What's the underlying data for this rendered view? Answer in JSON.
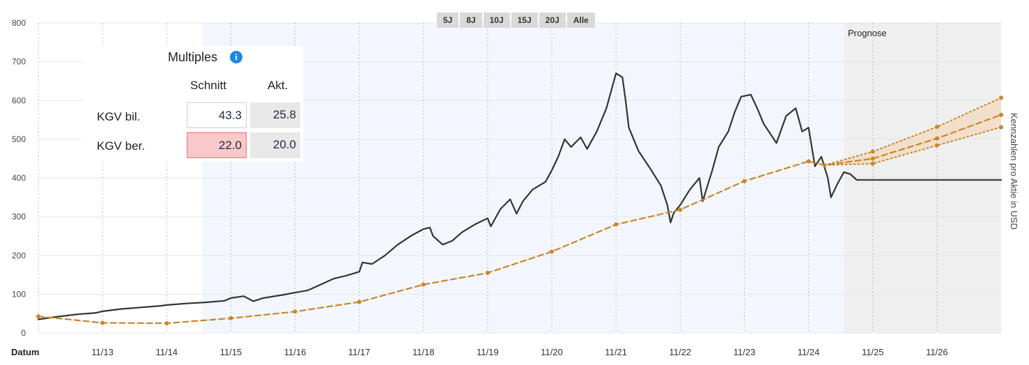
{
  "range_buttons": [
    "5J",
    "8J",
    "10J",
    "15J",
    "20J",
    "Alle"
  ],
  "forecast_label": "Prognose",
  "right_axis_label": "Kennzahlen pro Aktie in USD",
  "x_axis_title": "Datum",
  "multiples": {
    "title": "Multiples",
    "col_avg": "Schnitt",
    "col_cur": "Akt.",
    "rows": [
      {
        "label": "KGV bil.",
        "avg": "43.3",
        "cur": "25.8"
      },
      {
        "label": "KGV ber.",
        "avg": "22.0",
        "cur": "20.0"
      }
    ]
  },
  "colors": {
    "price": "#333333",
    "eps": "#c8862a",
    "forecast_bg": "#efefef",
    "highlight_bg": "#f3f7fd",
    "info": "#1e88e5"
  },
  "chart_data": {
    "type": "line",
    "x_ticks": [
      "11/13",
      "11/14",
      "11/15",
      "11/16",
      "11/17",
      "11/18",
      "11/19",
      "11/20",
      "11/21",
      "11/22",
      "11/23",
      "11/24",
      "11/25",
      "11/26"
    ],
    "y_ticks": [
      0,
      100,
      200,
      300,
      400,
      500,
      600,
      700,
      800
    ],
    "ylim": [
      0,
      800
    ],
    "xlim": [
      2012.0,
      2027.0
    ],
    "highlight_range": [
      2014.55,
      2024.55
    ],
    "forecast_start": 2024.55,
    "series": [
      {
        "key": "price",
        "style": "solid",
        "points": [
          [
            2012.0,
            35
          ],
          [
            2012.3,
            42
          ],
          [
            2012.6,
            48
          ],
          [
            2012.9,
            52
          ],
          [
            2013.0,
            56
          ],
          [
            2013.3,
            62
          ],
          [
            2013.6,
            66
          ],
          [
            2013.9,
            70
          ],
          [
            2014.0,
            72
          ],
          [
            2014.3,
            76
          ],
          [
            2014.6,
            79
          ],
          [
            2014.9,
            83
          ],
          [
            2015.0,
            90
          ],
          [
            2015.2,
            95
          ],
          [
            2015.35,
            82
          ],
          [
            2015.5,
            90
          ],
          [
            2015.8,
            98
          ],
          [
            2016.0,
            104
          ],
          [
            2016.2,
            110
          ],
          [
            2016.4,
            125
          ],
          [
            2016.6,
            140
          ],
          [
            2016.8,
            148
          ],
          [
            2017.0,
            158
          ],
          [
            2017.05,
            182
          ],
          [
            2017.2,
            178
          ],
          [
            2017.4,
            200
          ],
          [
            2017.6,
            228
          ],
          [
            2017.8,
            250
          ],
          [
            2018.0,
            268
          ],
          [
            2018.1,
            272
          ],
          [
            2018.15,
            250
          ],
          [
            2018.3,
            228
          ],
          [
            2018.45,
            238
          ],
          [
            2018.6,
            260
          ],
          [
            2018.8,
            280
          ],
          [
            2019.0,
            296
          ],
          [
            2019.05,
            275
          ],
          [
            2019.2,
            320
          ],
          [
            2019.35,
            345
          ],
          [
            2019.45,
            308
          ],
          [
            2019.55,
            340
          ],
          [
            2019.7,
            370
          ],
          [
            2019.9,
            390
          ],
          [
            2020.0,
            420
          ],
          [
            2020.1,
            455
          ],
          [
            2020.2,
            500
          ],
          [
            2020.3,
            480
          ],
          [
            2020.45,
            505
          ],
          [
            2020.55,
            475
          ],
          [
            2020.7,
            520
          ],
          [
            2020.85,
            580
          ],
          [
            2020.95,
            640
          ],
          [
            2021.0,
            670
          ],
          [
            2021.1,
            660
          ],
          [
            2021.15,
            600
          ],
          [
            2021.2,
            530
          ],
          [
            2021.35,
            470
          ],
          [
            2021.55,
            420
          ],
          [
            2021.7,
            380
          ],
          [
            2021.8,
            330
          ],
          [
            2021.85,
            285
          ],
          [
            2021.9,
            310
          ],
          [
            2022.0,
            330
          ],
          [
            2022.15,
            370
          ],
          [
            2022.3,
            400
          ],
          [
            2022.35,
            340
          ],
          [
            2022.5,
            420
          ],
          [
            2022.6,
            480
          ],
          [
            2022.75,
            520
          ],
          [
            2022.85,
            570
          ],
          [
            2022.95,
            610
          ],
          [
            2023.1,
            615
          ],
          [
            2023.2,
            580
          ],
          [
            2023.3,
            540
          ],
          [
            2023.5,
            490
          ],
          [
            2023.65,
            560
          ],
          [
            2023.8,
            580
          ],
          [
            2023.9,
            520
          ],
          [
            2024.0,
            530
          ],
          [
            2024.1,
            430
          ],
          [
            2024.2,
            455
          ],
          [
            2024.3,
            400
          ],
          [
            2024.35,
            350
          ],
          [
            2024.45,
            385
          ],
          [
            2024.55,
            415
          ],
          [
            2024.65,
            410
          ],
          [
            2024.75,
            395
          ],
          [
            2025.0,
            395
          ],
          [
            2025.5,
            395
          ],
          [
            2026.0,
            395
          ],
          [
            2026.5,
            395
          ],
          [
            2027.0,
            395
          ]
        ]
      },
      {
        "key": "eps",
        "style": "dashed",
        "points": [
          [
            2012.0,
            43
          ],
          [
            2013.0,
            26
          ],
          [
            2014.0,
            25
          ],
          [
            2015.0,
            38
          ],
          [
            2016.0,
            55
          ],
          [
            2017.0,
            80
          ],
          [
            2018.0,
            125
          ],
          [
            2019.0,
            155
          ],
          [
            2020.0,
            210
          ],
          [
            2021.0,
            280
          ],
          [
            2022.0,
            318
          ],
          [
            2023.0,
            392
          ],
          [
            2024.0,
            443
          ],
          [
            2024.25,
            433
          ],
          [
            2025.0,
            450
          ],
          [
            2026.0,
            502
          ],
          [
            2027.0,
            563
          ]
        ]
      },
      {
        "key": "eps_high",
        "style": "dotted",
        "points": [
          [
            2024.25,
            433
          ],
          [
            2025.0,
            468
          ],
          [
            2026.0,
            532
          ],
          [
            2027.0,
            607
          ]
        ]
      },
      {
        "key": "eps_low",
        "style": "dotted",
        "points": [
          [
            2024.25,
            433
          ],
          [
            2025.0,
            437
          ],
          [
            2026.0,
            484
          ],
          [
            2027.0,
            531
          ]
        ]
      }
    ],
    "eps_markers": [
      [
        2012.0,
        43
      ],
      [
        2013.0,
        26
      ],
      [
        2014.0,
        25
      ],
      [
        2015.0,
        38
      ],
      [
        2016.0,
        55
      ],
      [
        2017.0,
        80
      ],
      [
        2018.0,
        125
      ],
      [
        2019.0,
        155
      ],
      [
        2020.0,
        210
      ],
      [
        2021.0,
        280
      ],
      [
        2022.0,
        318
      ],
      [
        2023.0,
        392
      ],
      [
        2024.0,
        443
      ],
      [
        2024.25,
        433
      ],
      [
        2025.0,
        450
      ],
      [
        2026.0,
        502
      ],
      [
        2027.0,
        563
      ],
      [
        2025.0,
        468
      ],
      [
        2026.0,
        532
      ],
      [
        2027.0,
        607
      ],
      [
        2025.0,
        437
      ],
      [
        2026.0,
        484
      ],
      [
        2027.0,
        531
      ]
    ]
  }
}
